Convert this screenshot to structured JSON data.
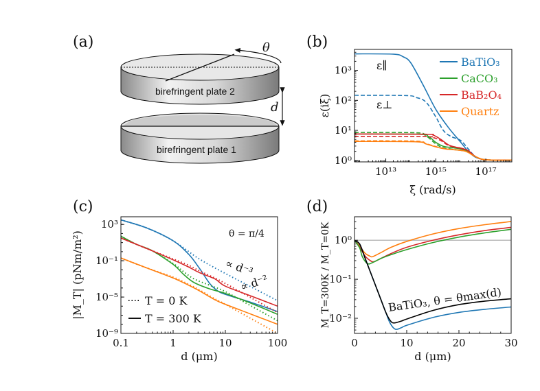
{
  "figure": {
    "panel_labels": [
      "(a)",
      "(b)",
      "(c)",
      "(d)"
    ]
  },
  "schematic": {
    "plate_top_label": "birefringent plate 2",
    "plate_bottom_label": "birefringent plate 1",
    "angle_label": "θ",
    "gap_label": "d"
  },
  "colors": {
    "BaTiO3": "#1f77b4",
    "CaCO3": "#2ca02c",
    "BaB2O4": "#d62728",
    "Quartz": "#ff7f0e",
    "BaTiO3_theta_max": "#000000",
    "reference": "#bbbbbb"
  },
  "chart_data": [
    {
      "panel": "(b)",
      "type": "line",
      "xlabel": "ξ (rad/s)",
      "ylabel": "ε(iξ)",
      "xscale": "log",
      "yscale": "log",
      "xlim": [
        560000000000.0,
        1.1e+18
      ],
      "ylim": [
        0.89,
        5000
      ],
      "xticks": [
        {
          "v": 10000000000000.0,
          "label": "10¹³"
        },
        {
          "v": 1000000000000000.0,
          "label": "10¹⁵"
        },
        {
          "v": 1e+17,
          "label": "10¹⁷"
        }
      ],
      "yticks": [
        {
          "v": 1,
          "label": "10⁰"
        },
        {
          "v": 10,
          "label": "10¹"
        },
        {
          "v": 100,
          "label": "10²"
        },
        {
          "v": 1000,
          "label": "10³"
        }
      ],
      "annotations": [
        "ε∥",
        "ε⊥"
      ],
      "legend": {
        "placement": "top-right",
        "entries": [
          "BaTiO₃",
          "CaCO₃",
          "BaB₂O₄",
          "Quartz"
        ]
      },
      "line_styles": {
        "solid": "ε∥",
        "dashed": "ε⊥"
      },
      "series_log10": [
        {
          "material": "BaTiO3",
          "style": "solid",
          "x": [
            11.75,
            13.3,
            13.7,
            14,
            14.5,
            15,
            15.5,
            16,
            16.3,
            16.6,
            17,
            17.5,
            18.05
          ],
          "y": [
            3.55,
            3.54,
            3.45,
            3.25,
            2.5,
            1.7,
            1.1,
            0.6,
            0.3,
            0.1,
            0.02,
            0.01,
            0.01
          ]
        },
        {
          "material": "BaTiO3",
          "style": "dashed",
          "x": [
            11.75,
            13.8,
            14.2,
            14.6,
            15,
            15.3,
            15.6,
            16,
            16.3,
            16.6,
            17,
            17.5,
            18.05
          ],
          "y": [
            2.17,
            2.16,
            2.1,
            1.95,
            1.45,
            1.0,
            0.8,
            0.66,
            0.38,
            0.12,
            0.02,
            0.01,
            0.01
          ]
        },
        {
          "material": "CaCO3",
          "style": "solid",
          "x": [
            11.75,
            14.3,
            14.7,
            15,
            15.3,
            15.7,
            16,
            16.3,
            16.6,
            17,
            18.05
          ],
          "y": [
            0.88,
            0.87,
            0.8,
            0.6,
            0.47,
            0.42,
            0.38,
            0.3,
            0.12,
            0.02,
            0.01
          ]
        },
        {
          "material": "CaCO3",
          "style": "dashed",
          "x": [
            11.75,
            14.2,
            14.6,
            15,
            15.3,
            15.7,
            16,
            16.3,
            16.6,
            17,
            18.05
          ],
          "y": [
            0.93,
            0.92,
            0.82,
            0.55,
            0.42,
            0.37,
            0.33,
            0.3,
            0.12,
            0.02,
            0.01
          ]
        },
        {
          "material": "BaB2O4",
          "style": "solid",
          "x": [
            11.75,
            14.6,
            14.9,
            15.2,
            15.5,
            15.8,
            16,
            16.3,
            16.6,
            17,
            18.05
          ],
          "y": [
            0.88,
            0.87,
            0.84,
            0.7,
            0.52,
            0.44,
            0.41,
            0.32,
            0.12,
            0.02,
            0.01
          ]
        },
        {
          "material": "BaB2O4",
          "style": "dashed",
          "x": [
            11.75,
            14.6,
            14.9,
            15.2,
            15.5,
            15.8,
            16,
            16.3,
            16.6,
            17,
            18.05
          ],
          "y": [
            0.8,
            0.79,
            0.76,
            0.66,
            0.5,
            0.43,
            0.4,
            0.32,
            0.12,
            0.02,
            0.01
          ]
        },
        {
          "material": "Quartz",
          "style": "solid",
          "x": [
            11.75,
            14.2,
            14.6,
            15,
            15.4,
            15.8,
            16.2,
            16.6,
            17,
            18.05
          ],
          "y": [
            0.63,
            0.62,
            0.55,
            0.45,
            0.38,
            0.35,
            0.3,
            0.12,
            0.02,
            0.01
          ]
        },
        {
          "material": "Quartz",
          "style": "dashed",
          "x": [
            11.75,
            14.2,
            14.6,
            15,
            15.4,
            15.8,
            16.2,
            16.6,
            17,
            18.05
          ],
          "y": [
            0.65,
            0.64,
            0.56,
            0.46,
            0.38,
            0.35,
            0.3,
            0.12,
            0.02,
            0.01
          ]
        }
      ]
    },
    {
      "panel": "(c)",
      "type": "line",
      "xlabel": "d (μm)",
      "ylabel": "|M_T| (pNm/m²)",
      "xscale": "log",
      "yscale": "log",
      "xlim": [
        0.1,
        100
      ],
      "ylim": [
        1e-09,
        7000.0
      ],
      "xticks": [
        {
          "v": 0.1,
          "label": "0.1"
        },
        {
          "v": 1,
          "label": "1"
        },
        {
          "v": 10,
          "label": "10"
        },
        {
          "v": 100,
          "label": "100"
        }
      ],
      "yticks": [
        {
          "v": 1000.0,
          "label": "10³"
        },
        {
          "v": 0.1,
          "label": "10⁻¹"
        },
        {
          "v": 1e-05,
          "label": "10⁻⁵"
        },
        {
          "v": 1e-09,
          "label": "10⁻⁹"
        }
      ],
      "annotations": [
        "θ = π/4",
        "∝ d⁻³",
        "∝ d⁻²"
      ],
      "legend": {
        "placement": "bottom-left",
        "entries": [
          "T = 0 K",
          "T = 300 K"
        ]
      },
      "line_styles": {
        "dotted": "T = 0 K",
        "solid": "T = 300 K"
      },
      "series_log10": [
        {
          "material": "BaTiO3",
          "style": "solid",
          "x": [
            -1,
            -0.5,
            0,
            0.3,
            0.5,
            0.7,
            0.85,
            1,
            1.5,
            2
          ],
          "y": [
            3.5,
            2.6,
            1.2,
            -0.3,
            -1.8,
            -3.5,
            -4.3,
            -4.7,
            -5.6,
            -6.6
          ]
        },
        {
          "material": "BaTiO3",
          "style": "dotted",
          "x": [
            -1,
            -0.5,
            0,
            0.5,
            1,
            1.5,
            2
          ],
          "y": [
            3.5,
            2.6,
            1.2,
            -0.8,
            -2.4,
            -3.9,
            -5.4
          ]
        },
        {
          "material": "CaCO3",
          "style": "solid",
          "x": [
            -1,
            -0.7,
            -0.4,
            0,
            0.2,
            0.4,
            0.7,
            1,
            1.5,
            2
          ],
          "y": [
            1.7,
            0.8,
            0.1,
            -1.4,
            -2.5,
            -3.4,
            -4.1,
            -4.6,
            -5.7,
            -6.9
          ]
        },
        {
          "material": "CaCO3",
          "style": "dotted",
          "x": [
            -1,
            -0.7,
            -0.4,
            0,
            0.2,
            0.4,
            0.7,
            1,
            1.5,
            2
          ],
          "y": [
            1.7,
            0.8,
            0.1,
            -1.3,
            -2.2,
            -3.0,
            -3.7,
            -4.4,
            -6.0,
            -7.6
          ]
        },
        {
          "material": "BaB2O4",
          "style": "solid",
          "x": [
            -1,
            -0.7,
            -0.4,
            0,
            0.3,
            0.5,
            0.8,
            1,
            1.5,
            2
          ],
          "y": [
            1.5,
            0.8,
            0.1,
            -0.9,
            -1.7,
            -2.3,
            -3.0,
            -3.8,
            -4.9,
            -6.0
          ]
        },
        {
          "material": "BaB2O4",
          "style": "dotted",
          "x": [
            -1,
            -0.7,
            -0.4,
            0,
            0.3,
            0.5,
            0.8,
            1,
            1.5,
            2
          ],
          "y": [
            1.5,
            0.8,
            0.1,
            -0.8,
            -1.5,
            -2.1,
            -2.9,
            -3.5,
            -5.1,
            -6.7
          ]
        },
        {
          "material": "Quartz",
          "style": "solid",
          "x": [
            -1,
            -0.5,
            0,
            0.3,
            0.5,
            0.8,
            1,
            1.5,
            2
          ],
          "y": [
            -0.7,
            -1.8,
            -2.9,
            -3.7,
            -4.3,
            -5.3,
            -5.8,
            -6.9,
            -8.0
          ]
        },
        {
          "material": "Quartz",
          "style": "dotted",
          "x": [
            -1,
            -0.5,
            0,
            0.3,
            0.5,
            0.8,
            1,
            1.5,
            2
          ],
          "y": [
            -0.7,
            -1.8,
            -2.8,
            -3.6,
            -4.2,
            -5.2,
            -5.8,
            -7.4,
            -9.0
          ]
        }
      ]
    },
    {
      "panel": "(d)",
      "type": "line",
      "xlabel": "d (μm)",
      "ylabel": "M_T=300K / M_T=0K",
      "xscale": "linear",
      "yscale": "log",
      "xlim": [
        0,
        30
      ],
      "ylim": [
        0.0041,
        4
      ],
      "xticks": [
        {
          "v": 0,
          "label": "0"
        },
        {
          "v": 10,
          "label": "10"
        },
        {
          "v": 20,
          "label": "20"
        },
        {
          "v": 30,
          "label": "30"
        }
      ],
      "yticks": [
        {
          "v": 1,
          "label": "10⁰"
        },
        {
          "v": 0.1,
          "label": "10⁻¹"
        },
        {
          "v": 0.01,
          "label": "10⁻²"
        }
      ],
      "annotations": [
        "BaTiO₃, θ = θmax(d)"
      ],
      "reference_line": 1,
      "series_log10y": [
        {
          "material": "Quartz",
          "style": "solid",
          "x": [
            0,
            1,
            2,
            3,
            3.5,
            5,
            7,
            10,
            15,
            20,
            25,
            30
          ],
          "y": [
            0,
            -0.15,
            -0.33,
            -0.41,
            -0.42,
            -0.32,
            -0.18,
            -0.03,
            0.16,
            0.3,
            0.4,
            0.48
          ]
        },
        {
          "material": "BaB2O4",
          "style": "solid",
          "x": [
            0,
            1,
            2,
            3,
            3.7,
            5,
            7,
            10,
            15,
            20,
            25,
            30
          ],
          "y": [
            0,
            -0.18,
            -0.4,
            -0.52,
            -0.55,
            -0.47,
            -0.34,
            -0.18,
            0.0,
            0.14,
            0.25,
            0.33
          ]
        },
        {
          "material": "CaCO3",
          "style": "solid",
          "x": [
            0,
            1,
            1.5,
            2.5,
            3.5,
            5,
            7,
            10,
            15,
            20,
            25,
            30
          ],
          "y": [
            0,
            -0.2,
            -0.42,
            -0.6,
            -0.57,
            -0.47,
            -0.37,
            -0.24,
            -0.06,
            0.08,
            0.19,
            0.28
          ]
        },
        {
          "material": "BaTiO3",
          "style": "solid",
          "x": [
            0,
            1,
            2,
            3,
            4,
            5,
            6,
            6.8,
            7.8,
            9,
            10,
            15,
            20,
            25,
            30
          ],
          "y": [
            0,
            -0.1,
            -0.45,
            -0.8,
            -1.15,
            -1.5,
            -1.85,
            -2.12,
            -2.28,
            -2.24,
            -2.18,
            -1.98,
            -1.85,
            -1.77,
            -1.71
          ]
        },
        {
          "material": "BaTiO3_theta_max",
          "style": "solid",
          "x": [
            0,
            1,
            2,
            3,
            4,
            5,
            6,
            6.8,
            7.5,
            9,
            10,
            15,
            20,
            25,
            30
          ],
          "y": [
            0,
            -0.1,
            -0.45,
            -0.8,
            -1.15,
            -1.5,
            -1.85,
            -2.05,
            -2.12,
            -2.07,
            -2.02,
            -1.8,
            -1.65,
            -1.56,
            -1.5
          ]
        }
      ]
    }
  ]
}
